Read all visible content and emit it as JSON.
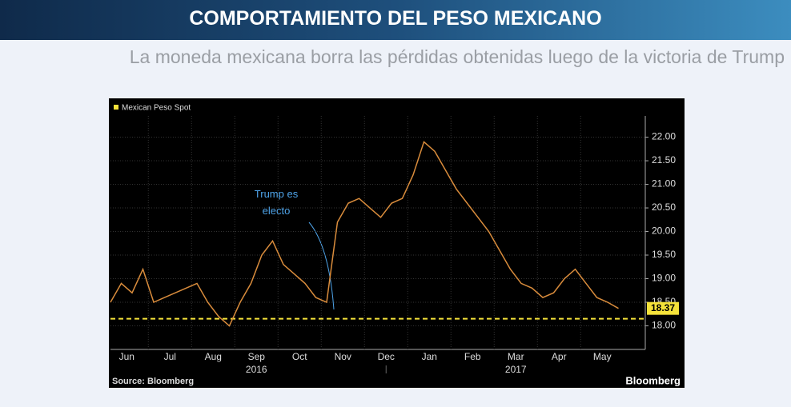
{
  "chart_data": {
    "type": "line",
    "title": "COMPORTAMIENTO DEL PESO MEXICANO",
    "subtitle": "La moneda mexicana borra las pérdidas obtenidas luego de la victoria de Trump",
    "months": [
      "Jun",
      "Jul",
      "Aug",
      "Sep",
      "Oct",
      "Nov",
      "Dec",
      "Jan",
      "Feb",
      "Mar",
      "Apr",
      "May"
    ],
    "years": [
      "2016",
      "2017"
    ],
    "series": [
      {
        "name": "Mexican Peso Spot",
        "color": "#d98c3c",
        "values": [
          18.5,
          18.9,
          18.7,
          19.2,
          18.5,
          18.6,
          18.7,
          18.8,
          18.9,
          18.5,
          18.2,
          18.0,
          18.5,
          18.9,
          19.5,
          19.8,
          19.3,
          19.1,
          18.9,
          18.6,
          18.5,
          20.2,
          20.6,
          20.7,
          20.5,
          20.3,
          20.6,
          20.7,
          21.2,
          21.9,
          21.7,
          21.3,
          20.9,
          20.6,
          20.3,
          20.0,
          19.6,
          19.2,
          18.9,
          18.8,
          18.6,
          18.7,
          19.0,
          19.2,
          18.9,
          18.6,
          18.5,
          18.37
        ]
      }
    ],
    "reference_line": {
      "value": 18.15,
      "color": "#f5e23a"
    },
    "annotation": "Trump es electo",
    "source": "Source: Bloomberg",
    "brand": "Bloomberg",
    "ylim": [
      17.5,
      22.45
    ],
    "yticks": [
      {
        "value": 18,
        "label": "18.00"
      },
      {
        "value": 18.5,
        "label": "18.50"
      },
      {
        "value": 19,
        "label": "19.00"
      },
      {
        "value": 19.5,
        "label": "19.50"
      },
      {
        "value": 20,
        "label": "20.00"
      },
      {
        "value": 20.5,
        "label": "20.50"
      },
      {
        "value": 21,
        "label": "21.00"
      },
      {
        "value": 21.5,
        "label": "21.50"
      },
      {
        "value": 22,
        "label": "22.00"
      }
    ],
    "grid": true
  }
}
